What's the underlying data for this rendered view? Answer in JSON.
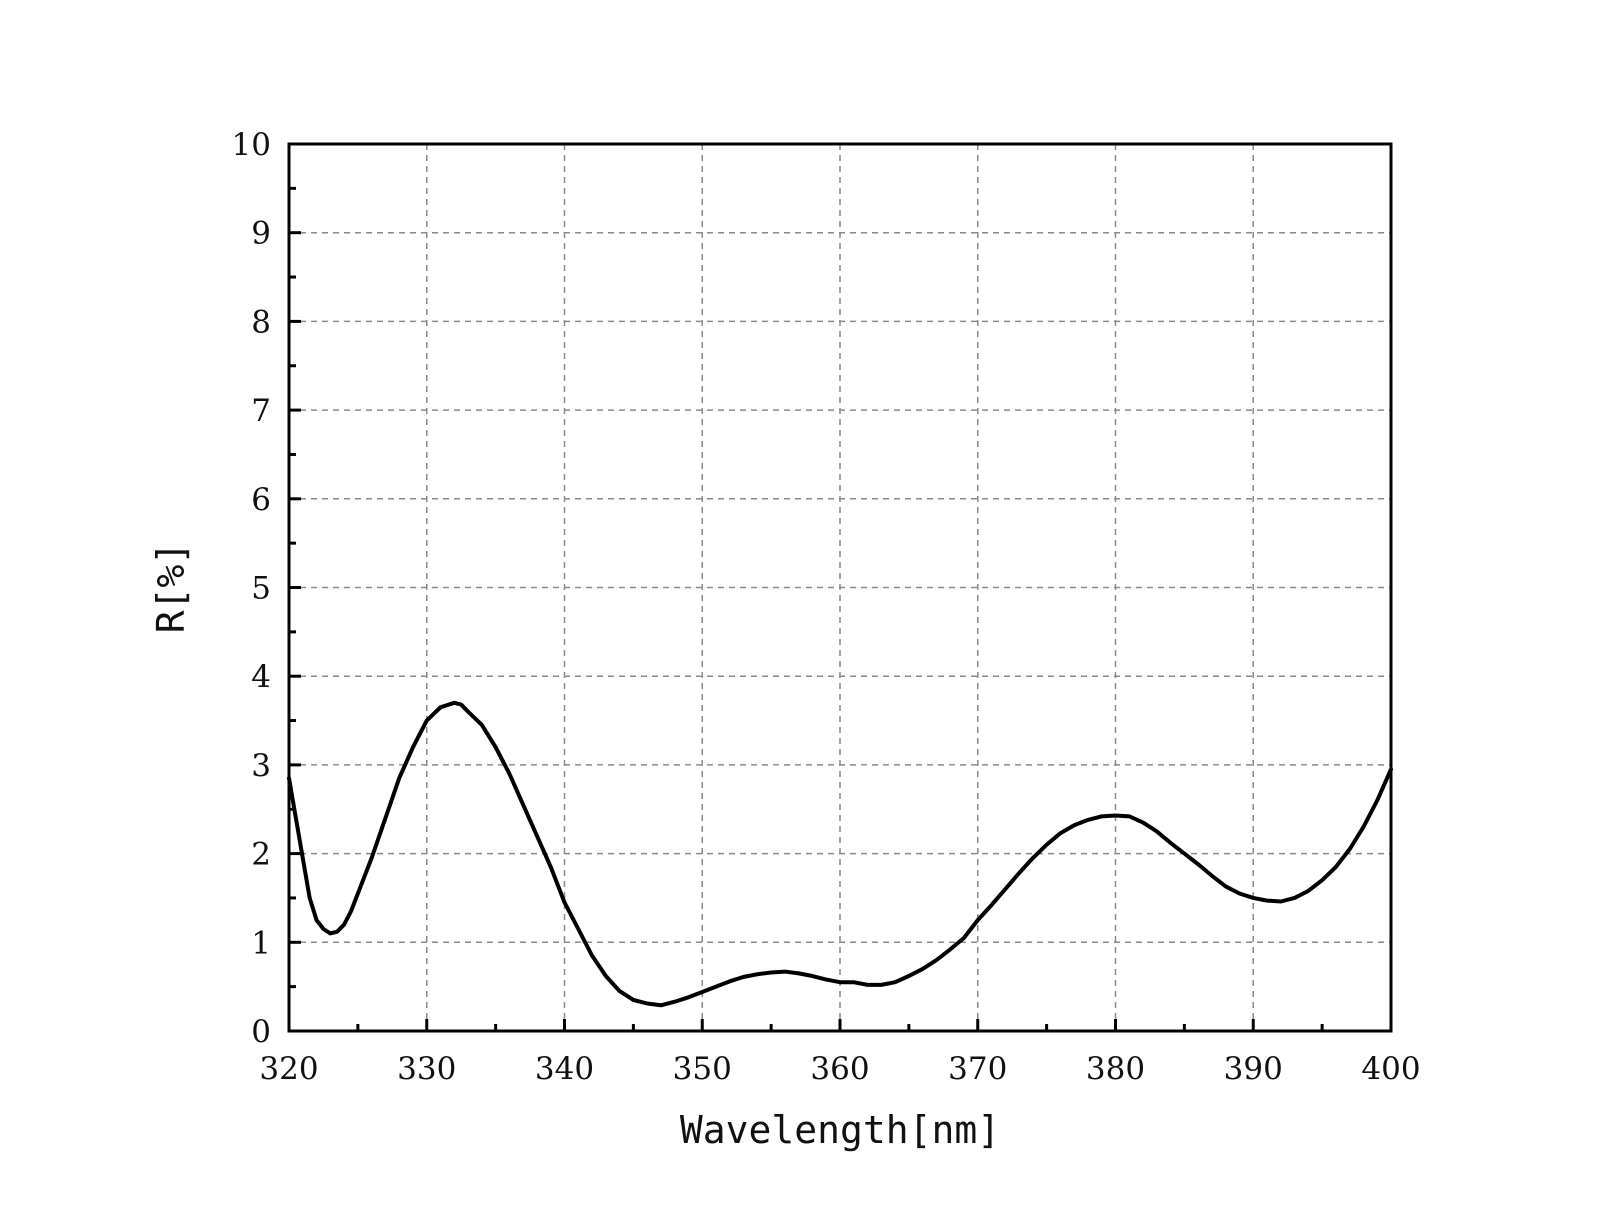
{
  "chart_data": {
    "type": "line",
    "title": "",
    "xlabel": "Wavelength[nm]",
    "ylabel": "R[%]",
    "xlim": [
      320,
      400
    ],
    "ylim": [
      0,
      10
    ],
    "x_ticks": [
      "320",
      "330",
      "340",
      "350",
      "360",
      "370",
      "380",
      "390",
      "400"
    ],
    "y_ticks": [
      "0",
      "1",
      "2",
      "3",
      "4",
      "5",
      "6",
      "7",
      "8",
      "9",
      "10"
    ],
    "grid": true,
    "series": [
      {
        "color": "#000000",
        "x": [
          320,
          320.5,
          321,
          321.5,
          322,
          322.5,
          323,
          323.5,
          324,
          324.5,
          325,
          326,
          327,
          328,
          329,
          330,
          331,
          332,
          332.5,
          333,
          334,
          335,
          336,
          337,
          338,
          339,
          340,
          341,
          342,
          343,
          344,
          345,
          346,
          347,
          348,
          349,
          350,
          351,
          352,
          353,
          354,
          355,
          356,
          357,
          358,
          359,
          360,
          361,
          362,
          363,
          364,
          365,
          366,
          367,
          368,
          369,
          370,
          371,
          372,
          373,
          374,
          375,
          376,
          377,
          378,
          379,
          380,
          381,
          382,
          383,
          384,
          385,
          386,
          387,
          388,
          389,
          390,
          391,
          392,
          393,
          394,
          395,
          396,
          397,
          398,
          399,
          400
        ],
        "y": [
          2.85,
          2.4,
          1.95,
          1.5,
          1.25,
          1.15,
          1.1,
          1.12,
          1.2,
          1.35,
          1.55,
          1.95,
          2.4,
          2.85,
          3.2,
          3.5,
          3.65,
          3.7,
          3.68,
          3.6,
          3.45,
          3.2,
          2.9,
          2.55,
          2.2,
          1.85,
          1.45,
          1.15,
          0.85,
          0.62,
          0.45,
          0.35,
          0.31,
          0.29,
          0.33,
          0.38,
          0.44,
          0.5,
          0.56,
          0.61,
          0.64,
          0.66,
          0.67,
          0.65,
          0.62,
          0.58,
          0.55,
          0.55,
          0.52,
          0.52,
          0.55,
          0.62,
          0.7,
          0.8,
          0.92,
          1.05,
          1.25,
          1.42,
          1.6,
          1.78,
          1.95,
          2.1,
          2.23,
          2.32,
          2.38,
          2.42,
          2.43,
          2.42,
          2.35,
          2.25,
          2.12,
          2.0,
          1.88,
          1.75,
          1.63,
          1.55,
          1.5,
          1.47,
          1.46,
          1.5,
          1.58,
          1.7,
          1.85,
          2.05,
          2.3,
          2.6,
          2.95
        ]
      }
    ]
  }
}
